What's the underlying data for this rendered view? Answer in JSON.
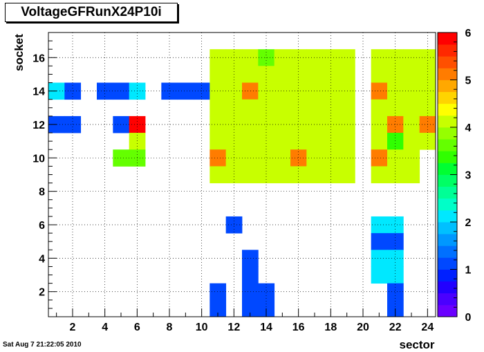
{
  "title": "VoltageGFRunX24P10i",
  "timestamp": "Sat Aug  7 21:22:05 2010",
  "chart_data": {
    "type": "heatmap",
    "title": "VoltageGFRunX24P10i",
    "xlabel": "sector",
    "ylabel": "socket",
    "xlim": [
      0.5,
      24.5
    ],
    "ylim": [
      0.5,
      17.5
    ],
    "zlim": [
      0,
      6
    ],
    "grid": true,
    "x_ticks": [
      2,
      4,
      6,
      8,
      10,
      12,
      14,
      16,
      18,
      20,
      22,
      24
    ],
    "y_ticks": [
      2,
      4,
      6,
      8,
      10,
      12,
      14,
      16
    ],
    "z_ticks": [
      0,
      1,
      2,
      3,
      4,
      5,
      6
    ],
    "palette": [
      "#6a00ff",
      "#4a00ff",
      "#2200ff",
      "#0020ff",
      "#0048ff",
      "#0070ff",
      "#0098ff",
      "#00c0ff",
      "#00e8ff",
      "#00ffc8",
      "#00ff96",
      "#00ff64",
      "#00ff32",
      "#30ff00",
      "#64ff00",
      "#96ff00",
      "#c8ff00",
      "#ffff00",
      "#ffd400",
      "#ffa800",
      "#ff7c00",
      "#ff5000",
      "#ff2800",
      "#ff0000"
    ],
    "cells": [
      [
        1,
        14,
        2.1
      ],
      [
        2,
        14,
        1.1
      ],
      [
        4,
        14,
        1.1
      ],
      [
        5,
        14,
        1.1
      ],
      [
        6,
        14,
        2.1
      ],
      [
        8,
        14,
        1.1
      ],
      [
        9,
        14,
        1.1
      ],
      [
        10,
        14,
        1.1
      ],
      [
        1,
        12,
        1.1
      ],
      [
        2,
        12,
        1.1
      ],
      [
        5,
        12,
        1.1
      ],
      [
        6,
        12,
        5.9
      ],
      [
        6,
        11,
        4.1
      ],
      [
        5,
        10,
        3.6
      ],
      [
        6,
        10,
        3.6
      ],
      [
        11,
        16,
        4.1
      ],
      [
        12,
        16,
        4.1
      ],
      [
        13,
        16,
        4.1
      ],
      [
        14,
        16,
        3.5
      ],
      [
        15,
        16,
        4.1
      ],
      [
        16,
        16,
        4.1
      ],
      [
        17,
        16,
        4.1
      ],
      [
        18,
        16,
        4.1
      ],
      [
        19,
        16,
        4.1
      ],
      [
        11,
        15,
        4.1
      ],
      [
        12,
        15,
        4.1
      ],
      [
        13,
        15,
        4.1
      ],
      [
        14,
        15,
        4.1
      ],
      [
        15,
        15,
        4.1
      ],
      [
        16,
        15,
        4.1
      ],
      [
        17,
        15,
        4.1
      ],
      [
        18,
        15,
        4.1
      ],
      [
        19,
        15,
        4.1
      ],
      [
        11,
        14,
        4.1
      ],
      [
        12,
        14,
        4.1
      ],
      [
        13,
        14,
        5.1
      ],
      [
        14,
        14,
        4.1
      ],
      [
        15,
        14,
        4.1
      ],
      [
        16,
        14,
        4.1
      ],
      [
        17,
        14,
        4.1
      ],
      [
        18,
        14,
        4.1
      ],
      [
        19,
        14,
        4.1
      ],
      [
        11,
        13,
        4.1
      ],
      [
        12,
        13,
        4.1
      ],
      [
        13,
        13,
        4.1
      ],
      [
        14,
        13,
        4.1
      ],
      [
        15,
        13,
        4.1
      ],
      [
        16,
        13,
        4.1
      ],
      [
        17,
        13,
        4.1
      ],
      [
        18,
        13,
        4.1
      ],
      [
        19,
        13,
        4.1
      ],
      [
        11,
        12,
        4.1
      ],
      [
        12,
        12,
        4.1
      ],
      [
        13,
        12,
        4.1
      ],
      [
        14,
        12,
        4.1
      ],
      [
        15,
        12,
        4.1
      ],
      [
        16,
        12,
        4.1
      ],
      [
        17,
        12,
        4.1
      ],
      [
        18,
        12,
        4.1
      ],
      [
        19,
        12,
        4.1
      ],
      [
        11,
        11,
        4.1
      ],
      [
        12,
        11,
        4.1
      ],
      [
        13,
        11,
        4.1
      ],
      [
        14,
        11,
        4.1
      ],
      [
        15,
        11,
        4.1
      ],
      [
        16,
        11,
        4.1
      ],
      [
        17,
        11,
        4.1
      ],
      [
        18,
        11,
        4.1
      ],
      [
        19,
        11,
        4.1
      ],
      [
        11,
        10,
        5.1
      ],
      [
        12,
        10,
        4.1
      ],
      [
        13,
        10,
        4.1
      ],
      [
        14,
        10,
        4.1
      ],
      [
        15,
        10,
        4.1
      ],
      [
        16,
        10,
        5.1
      ],
      [
        17,
        10,
        4.1
      ],
      [
        18,
        10,
        4.1
      ],
      [
        19,
        10,
        4.1
      ],
      [
        11,
        9,
        4.1
      ],
      [
        12,
        9,
        4.1
      ],
      [
        13,
        9,
        4.1
      ],
      [
        14,
        9,
        4.1
      ],
      [
        15,
        9,
        4.1
      ],
      [
        16,
        9,
        4.1
      ],
      [
        17,
        9,
        4.1
      ],
      [
        18,
        9,
        4.1
      ],
      [
        19,
        9,
        4.1
      ],
      [
        21,
        16,
        4.1
      ],
      [
        22,
        16,
        4.1
      ],
      [
        23,
        16,
        4.1
      ],
      [
        24,
        16,
        4.1
      ],
      [
        21,
        15,
        4.1
      ],
      [
        22,
        15,
        4.1
      ],
      [
        23,
        15,
        4.1
      ],
      [
        24,
        15,
        4.1
      ],
      [
        21,
        14,
        5.1
      ],
      [
        22,
        14,
        4.1
      ],
      [
        23,
        14,
        4.1
      ],
      [
        24,
        14,
        4.1
      ],
      [
        21,
        13,
        4.1
      ],
      [
        22,
        13,
        4.1
      ],
      [
        23,
        13,
        4.1
      ],
      [
        24,
        13,
        4.1
      ],
      [
        21,
        12,
        4.1
      ],
      [
        22,
        12,
        5.1
      ],
      [
        23,
        12,
        4.1
      ],
      [
        24,
        12,
        5.1
      ],
      [
        21,
        11,
        4.1
      ],
      [
        22,
        11,
        3.4
      ],
      [
        23,
        11,
        4.1
      ],
      [
        24,
        11,
        4.1
      ],
      [
        21,
        10,
        5.1
      ],
      [
        22,
        10,
        4.1
      ],
      [
        23,
        10,
        4.1
      ],
      [
        21,
        9,
        4.1
      ],
      [
        22,
        9,
        4.1
      ],
      [
        23,
        9,
        4.1
      ],
      [
        12,
        6,
        1.1
      ],
      [
        21,
        6,
        2.1
      ],
      [
        22,
        6,
        2.1
      ],
      [
        21,
        5,
        1.1
      ],
      [
        22,
        5,
        1.1
      ],
      [
        21,
        4,
        2.1
      ],
      [
        22,
        4,
        2.1
      ],
      [
        21,
        3,
        2.1
      ],
      [
        22,
        3,
        2.1
      ],
      [
        13,
        4,
        1.1
      ],
      [
        13,
        3,
        1.1
      ],
      [
        11,
        2,
        1.1
      ],
      [
        13,
        2,
        1.1
      ],
      [
        14,
        2,
        1.1
      ],
      [
        11,
        1,
        1.1
      ],
      [
        13,
        1,
        1.1
      ],
      [
        14,
        1,
        1.1
      ],
      [
        22,
        2,
        1.1
      ],
      [
        22,
        1,
        1.1
      ]
    ]
  }
}
